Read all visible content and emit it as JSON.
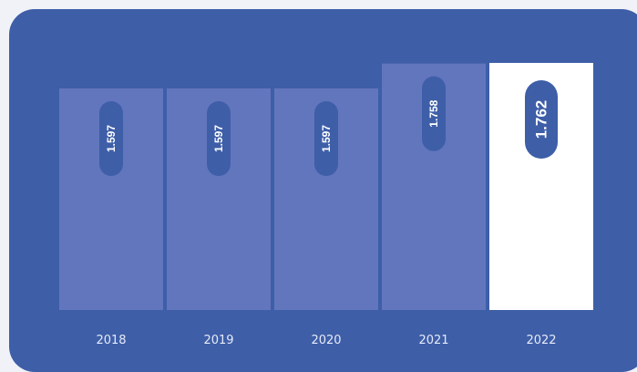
{
  "colors": {
    "background": "#3e5ea8",
    "bar": "#6276bd",
    "highlight_bar": "#ffffff",
    "pill": "#3e5ea8",
    "text": "#ffffff"
  },
  "chart_data": {
    "type": "bar",
    "categories": [
      "2018",
      "2019",
      "2020",
      "2021",
      "2022"
    ],
    "values": [
      1.597,
      1.597,
      1.597,
      1.758,
      1.762
    ],
    "value_labels": [
      "1.597",
      "1.597",
      "1.597",
      "1.758",
      "1.762"
    ],
    "highlighted_category": "2022",
    "title": "",
    "xlabel": "",
    "ylabel": "",
    "grid": false
  }
}
